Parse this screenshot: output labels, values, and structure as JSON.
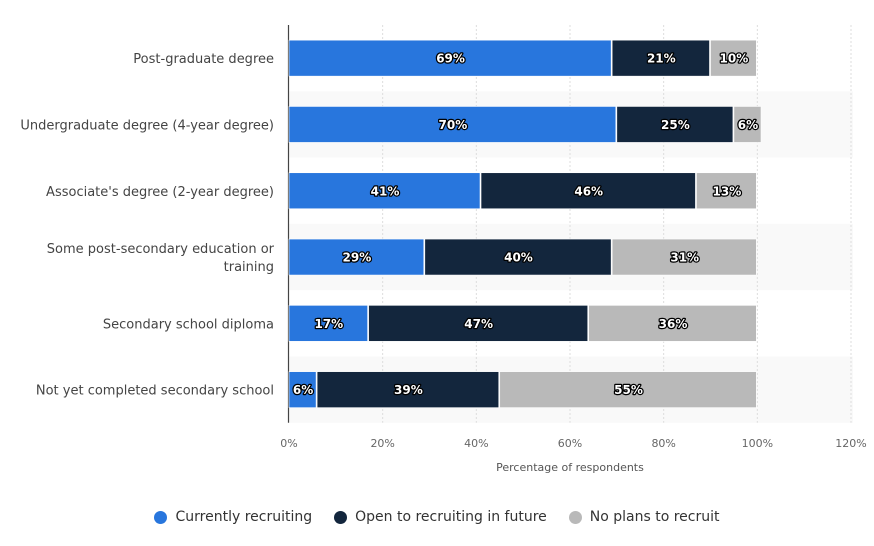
{
  "chart_data": {
    "type": "bar",
    "orientation": "horizontal",
    "stacked": true,
    "categories": [
      [
        "Post-graduate degree"
      ],
      [
        "Undergraduate degree (4-year degree)"
      ],
      [
        "Associate's degree (2-year degree)"
      ],
      [
        "Some post-secondary education or",
        "training"
      ],
      [
        "Secondary school diploma"
      ],
      [
        "Not yet completed secondary school"
      ]
    ],
    "series": [
      {
        "name": "Currently recruiting",
        "color": "#2876dd",
        "values": [
          69,
          70,
          41,
          29,
          17,
          6
        ]
      },
      {
        "name": "Open to recruiting in future",
        "color": "#13263d",
        "values": [
          21,
          25,
          46,
          40,
          47,
          39
        ]
      },
      {
        "name": "No plans to recruit",
        "color": "#b9b9b9",
        "values": [
          10,
          6,
          13,
          31,
          36,
          55
        ]
      }
    ],
    "xlabel": "Percentage of respondents",
    "xlim": [
      0,
      120
    ],
    "xticks": [
      "0%",
      "20%",
      "40%",
      "60%",
      "80%",
      "100%",
      "120%"
    ],
    "grid": true,
    "legend_position": "bottom",
    "data_labels": true
  }
}
